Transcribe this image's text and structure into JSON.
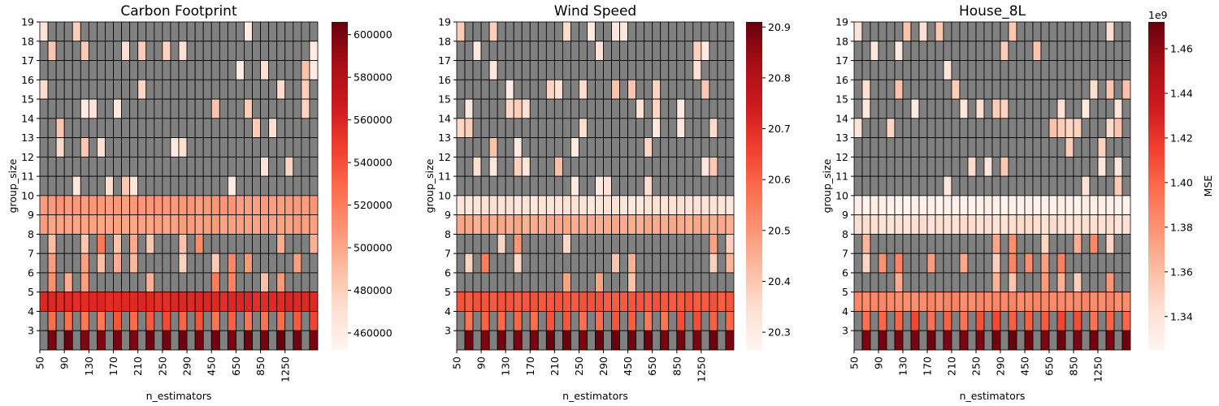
{
  "chart_data": [
    {
      "type": "heatmap",
      "title": "Carbon Footprint",
      "xlabel": "n_estimators",
      "ylabel": "group_size",
      "x_tick_labels": [
        "50",
        "90",
        "130",
        "170",
        "210",
        "250",
        "290",
        "450",
        "650",
        "850",
        "1250"
      ],
      "y_tick_labels": [
        "19",
        "18",
        "17",
        "16",
        "15",
        "14",
        "13",
        "12",
        "11",
        "10",
        "9",
        "8",
        "7",
        "6",
        "5",
        "4",
        "3"
      ],
      "missing_color": "#808080",
      "colormap": "Reds",
      "colorbar": {
        "min": 452000,
        "max": 606000,
        "ticks": [
          "460000",
          "480000",
          "500000",
          "520000",
          "540000",
          "560000",
          "580000",
          "600000"
        ],
        "tick_values": [
          460000,
          480000,
          500000,
          520000,
          540000,
          560000,
          580000,
          600000
        ],
        "label": "",
        "offset_text": ""
      }
    },
    {
      "type": "heatmap",
      "title": "Wind Speed",
      "xlabel": "n_estimators",
      "ylabel": "group_size",
      "x_tick_labels": [
        "50",
        "90",
        "130",
        "170",
        "210",
        "250",
        "290",
        "450",
        "650",
        "850",
        "1250"
      ],
      "y_tick_labels": [
        "19",
        "18",
        "17",
        "16",
        "15",
        "14",
        "13",
        "12",
        "11",
        "10",
        "9",
        "8",
        "7",
        "6",
        "5",
        "4",
        "3"
      ],
      "missing_color": "#808080",
      "colormap": "Reds",
      "colorbar": {
        "min": 20.265,
        "max": 20.91,
        "ticks": [
          "20.3",
          "20.4",
          "20.5",
          "20.6",
          "20.7",
          "20.8",
          "20.9"
        ],
        "tick_values": [
          20.3,
          20.4,
          20.5,
          20.6,
          20.7,
          20.8,
          20.9
        ],
        "label": "",
        "offset_text": ""
      }
    },
    {
      "type": "heatmap",
      "title": "House_8L",
      "xlabel": "n_estimators",
      "ylabel": "group_size",
      "x_tick_labels": [
        "50",
        "90",
        "130",
        "170",
        "210",
        "250",
        "290",
        "450",
        "650",
        "850",
        "1250"
      ],
      "y_tick_labels": [
        "19",
        "18",
        "17",
        "16",
        "15",
        "14",
        "13",
        "12",
        "11",
        "10",
        "9",
        "8",
        "7",
        "6",
        "5",
        "4",
        "3"
      ],
      "missing_color": "#808080",
      "colormap": "Reds",
      "colorbar": {
        "min": 1.325,
        "max": 1.472,
        "ticks": [
          "1.34",
          "1.36",
          "1.38",
          "1.40",
          "1.42",
          "1.44",
          "1.46"
        ],
        "tick_values": [
          1.34,
          1.36,
          1.38,
          1.4,
          1.42,
          1.44,
          1.46
        ],
        "label": "MSE",
        "offset_text": "1e9"
      }
    }
  ]
}
